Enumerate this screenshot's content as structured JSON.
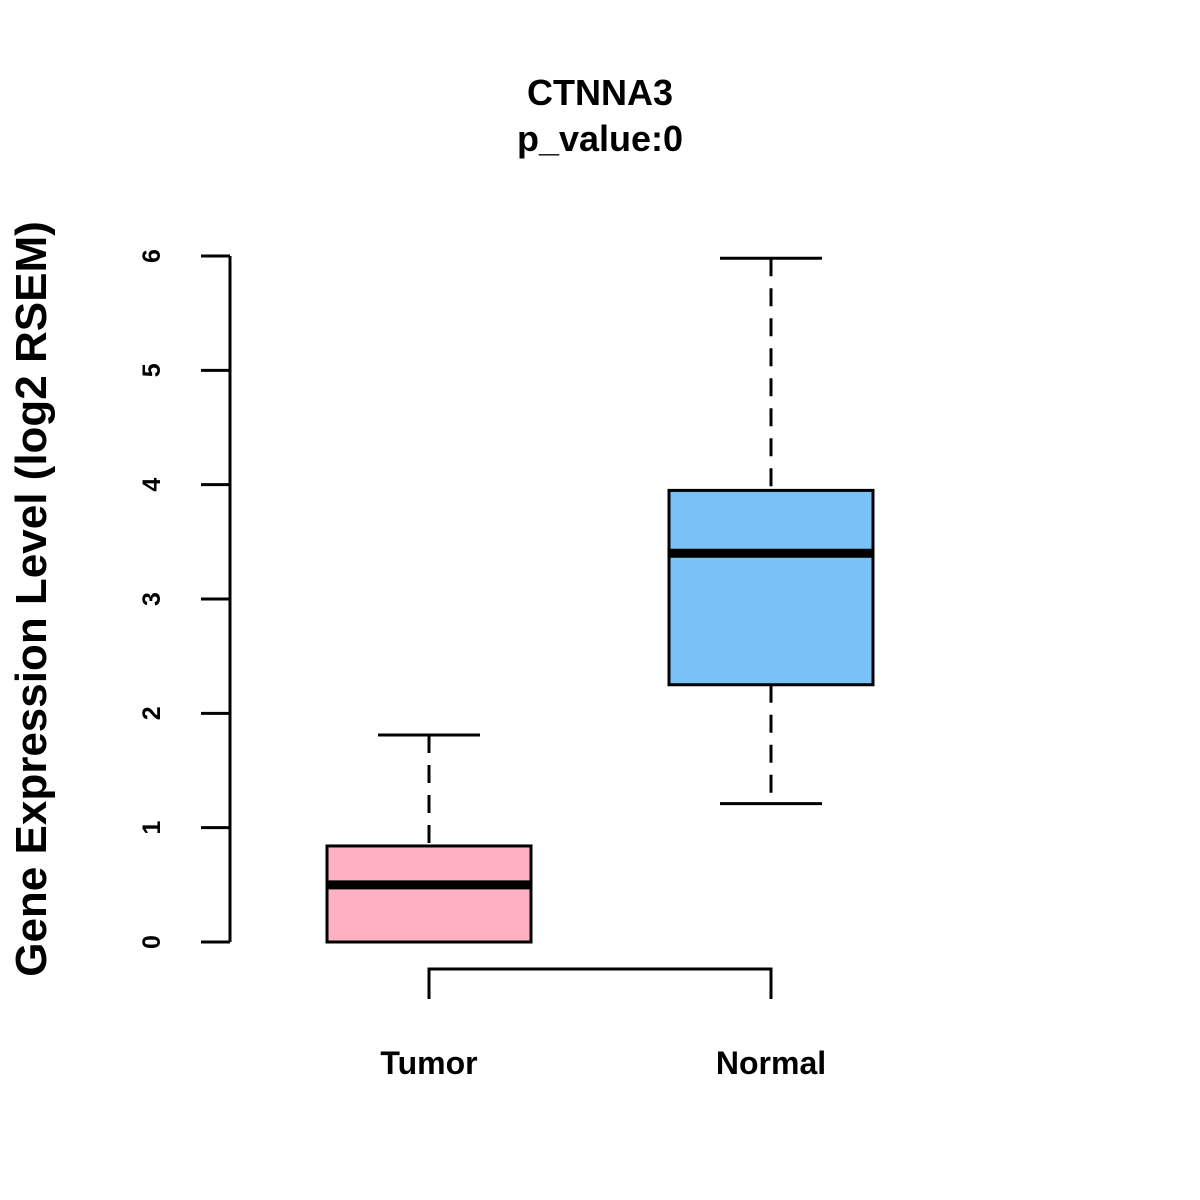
{
  "chart_data": {
    "type": "boxplot",
    "title": "CTNNA3",
    "subtitle": "p_value:0",
    "xlabel": "",
    "ylabel": "Gene Expression Level (log2 RSEM)",
    "ylim": [
      0,
      6
    ],
    "yticks": [
      0,
      1,
      2,
      3,
      4,
      5,
      6
    ],
    "categories": [
      "Tumor",
      "Normal"
    ],
    "boxes": [
      {
        "name": "Tumor",
        "min": 0.0,
        "q1": 0.0,
        "median": 0.5,
        "q3": 0.84,
        "max": 1.81,
        "color": "#FFB0C3"
      },
      {
        "name": "Normal",
        "min": 1.21,
        "q1": 2.25,
        "median": 3.4,
        "q3": 3.95,
        "max": 5.98,
        "color": "#79C2F8"
      }
    ],
    "comparison_bracket": {
      "from": "Tumor",
      "to": "Normal"
    },
    "grid": false
  }
}
